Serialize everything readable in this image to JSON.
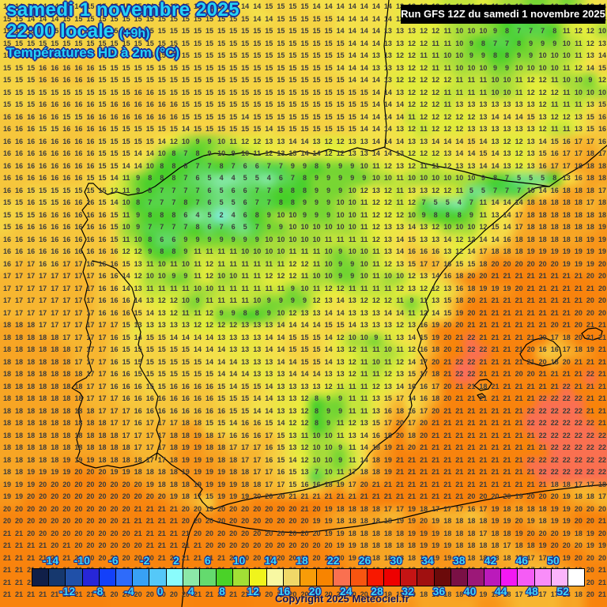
{
  "header": {
    "date_line": "samedi 1 novembre 2025",
    "time_line": "22:00 locale",
    "time_suffix": "(+9h)",
    "variable_line": "Températures HD à 2m (°C)"
  },
  "run_box": {
    "text": "Run GFS 12Z du samedi 1 novembre 2025"
  },
  "copyright": {
    "text": "Copyright 2025 Meteociel.fr"
  },
  "colors": {
    "title_text": "#22d3f7",
    "title_outline": "#1d2d96",
    "run_box_bg": "#000000",
    "run_box_text": "#ffffff",
    "number_text": "#3c3c3c",
    "coastline": "#000000",
    "copyright_text": "#13135a",
    "scale_label_text": "#3fd7f7"
  },
  "scale": {
    "min": -14,
    "max": 52,
    "step": 2,
    "labels_top": [
      "-14",
      "-10",
      "-6",
      "-2",
      "2",
      "6",
      "10",
      "14",
      "18",
      "22",
      "26",
      "30",
      "34",
      "38",
      "42",
      "46",
      "50"
    ],
    "labels_bottom": [
      "-12",
      "-8",
      "-4",
      "0",
      "4",
      "8",
      "12",
      "16",
      "20",
      "24",
      "28",
      "32",
      "36",
      "40",
      "44",
      "48",
      "52"
    ],
    "cell_colors": [
      "#101f48",
      "#16386e",
      "#2050a8",
      "#2726d8",
      "#1340fa",
      "#2e6bfa",
      "#38a1f5",
      "#55c8f8",
      "#8afcfc",
      "#8ce8a8",
      "#64da6e",
      "#4ad228",
      "#a2e035",
      "#f0f41c",
      "#f8f8a2",
      "#f0d868",
      "#f89c08",
      "#f88400",
      "#fa7050",
      "#f85510",
      "#f81800",
      "#ee0000",
      "#c41414",
      "#a01010",
      "#6b0a0a",
      "#7a1045",
      "#9c1878",
      "#bb1abb",
      "#f318f3",
      "#f55cf5",
      "#f98df9",
      "#fbb5fb",
      "#ffffff"
    ]
  },
  "map": {
    "cols": 51,
    "rows": 49,
    "gradient": [
      [
        -4,
        "#2e6bfa"
      ],
      [
        -2,
        "#38a1f5"
      ],
      [
        0,
        "#58c8f8"
      ],
      [
        2,
        "#80ecdc"
      ],
      [
        4,
        "#84e8a4"
      ],
      [
        6,
        "#62d866"
      ],
      [
        8,
        "#4cd02c"
      ],
      [
        10,
        "#a6dc3a"
      ],
      [
        12,
        "#e2ec3c"
      ],
      [
        14,
        "#f4e04a"
      ],
      [
        16,
        "#f6c63c"
      ],
      [
        18,
        "#f7a524"
      ],
      [
        20,
        "#f8860f"
      ],
      [
        21.5,
        "#f8820c"
      ],
      [
        22,
        "#fa7050"
      ],
      [
        24,
        "#f85510"
      ]
    ],
    "temps": [
      "14 14 14 14 14 14 14 15 15 15 15 15 14 14 15 15 15 15 15 14 14 14 15 15 15 15 14 14 14 14 14 14 14 13 13 13 12 11 11 11 12 11 10 10 9 9 10 9 10 13 14",
      "15 15 14 14 14 15 15 15 15 15 15 15 15 15 15 15 15 15 15 15 15 14 14 15 15 15 15 15 14 14 14 14 14 13 13 12 12 11 10 10 9 9 8 7 8 9 10 11 12 12 13",
      "15 15 15 15 15 15 15 15 15 15 15 15 15 15 15 15 15 15 15 15 15 15 15 15 15 15 15 15 14 14 14 14 13 13 13 12 12 11 10 10 10 9 8 7 7 7 8 11 12 12 10",
      "15 15 15 15 15 15 15 15 15 15 15 15 15 15 15 15 15 15 15 15 15 15 15 15 15 15 15 15 15 14 14 14 13 13 12 12 11 11 10 9 8 7 7 8 9 9 9 10 11 12 13",
      "15 15 15 15 15 15 15 16 16 15 15 15 15 15 15 15 15 15 15 15 15 15 15 15 15 15 15 15 15 14 14 13 13 12 12 11 11 10 10 9 9 8 8 9 9 10 10 10 11 13 14",
      "15 15 15 16 16 16 16 16 15 15 15 15 15 15 15 15 15 15 15 15 15 15 15 15 15 15 15 15 14 14 14 13 13 13 12 12 11 11 10 10 10 9 9 10 10 10 10 11 12 14 15",
      "15 15 15 16 16 16 16 16 15 15 15 15 15 15 15 15 15 15 15 15 15 15 15 15 15 15 15 15 15 14 14 14 13 12 12 12 12 12 11 11 11 10 10 11 12 12 11 10 10 9 12",
      "15 15 15 15 15 15 15 15 15 15 15 16 16 15 15 15 15 15 15 15 15 15 15 15 15 15 15 15 15 15 15 14 14 13 12 12 12 11 11 11 11 10 10 11 12 12 12 11 10 10 10",
      "15 15 15 16 16 16 16 16 15 16 16 16 16 16 16 15 15 15 15 15 15 15 15 15 15 15 15 15 15 15 15 14 14 14 12 12 12 11 13 13 13 13 13 13 13 12 11 11 11 13 15",
      "16 16 16 16 16 15 15 16 16 16 16 16 16 16 16 15 15 15 15 15 14 15 15 15 15 15 15 15 15 15 14 14 14 14 11 12 12 12 12 12 13 14 14 14 15 13 12 12 13 15 16",
      "16 16 16 15 15 16 16 16 16 15 15 15 15 15 15 14 15 15 15 15 15 15 14 15 15 15 15 15 15 15 14 14 14 13 12 11 12 12 12 13 13 13 13 13 13 12 11 11 13 15 16",
      "16 16 16 16 16 16 16 16 15 15 15 15 15 14 12 10 9 9 10 11 12 12 13 13 14 14 13 12 12 13 13 14 14 14 13 13 14 14 14 15 14 13 12 12 13 14 15 16 17 17 16",
      "16 16 16 16 16 16 16 16 15 15 15 14 14 10 8 7 8 9 10 9 10 11 12 13 13 14 14 12 12 13 13 14 14 13 12 12 12 13 14 14 15 14 13 12 13 15 16 17 17 18 17",
      "16 16 16 16 16 16 16 16 15 15 14 14 10 8 8 8 7 7 8 7 6 6 7 7 9 9 8 9 9 9 10 11 12 13 12 11 11 12 13 13 14 14 13 12 13 16 17 17 18 18 18",
      "16 16 16 16 16 16 16 15 15 14 11 9 8 8 8 7 6 5 4 4 5 5 4 6 7 8 9 9 9 9 9 10 10 11 10 10 10 10 10 10 9 8 7 5 5 5 8 13 16 18 18",
      "16 16 15 15 15 15 15 15 15 12 11 9 8 7 7 7 7 6 5 6 6 7 7 8 8 8 9 9 9 10 12 13 12 11 13 13 12 12 11 5 5 7 7 7 10 14 16 18 18 18 17",
      "15 15 16 15 15 16 16 16 15 14 10 8 7 7 7 8 7 6 5 5 6 7 7 8 8 9 9 9 10 10 11 12 12 11 12 7 5 5 4 7 11 14 14 14 18 18 18 18 18 17 18",
      "15 15 15 16 16 16 16 16 16 15 11 9 8 8 8 6 4 5 2 4 6 8 9 10 10 9 9 9 10 10 11 12 12 12 10 9 8 8 8 9 11 13 14 17 18 18 18 18 18 18 18",
      "15 16 16 16 16 16 16 16 16 15 10 9 7 7 7 7 8 6 7 6 5 7 9 9 10 10 10 10 10 10 11 12 13 13 14 13 12 10 10 10 12 15 14 17 18 18 18 18 18 18 19",
      "16 16 16 16 16 16 16 16 16 15 11 10 8 6 6 9 9 9 9 9 9 9 10 10 10 10 10 11 11 11 11 12 13 14 15 13 13 14 12 12 14 14 16 18 18 18 18 18 18 19 19",
      "16 16 16 16 16 16 16 16 16 16 12 12 9 8 8 9 11 11 11 11 10 10 10 10 11 11 11 10 9 10 10 11 13 14 16 16 16 13 12 14 17 18 18 18 19 19 19 19 19 19 19",
      "16 17 17 16 16 17 17 16 16 16 15 13 11 10 11 10 11 12 11 11 11 11 11 11 12 12 11 10 9 9 10 11 12 13 15 17 17 16 15 15 18 20 20 20 20 20 20 19 19 19 20",
      "17 17 17 17 17 17 17 17 16 16 14 12 10 10 9 9 11 12 10 10 11 11 12 12 12 11 10 10 9 9 10 11 10 10 12 13 14 16 18 20 20 21 21 21 21 21 21 21 21 20 20",
      "17 17 17 17 17 17 17 17 16 16 14 13 11 11 11 11 10 10 11 11 11 11 11 11 9 10 11 12 12 11 11 11 11 12 13 12 12 13 16 18 19 19 19 20 21 21 21 21 21 21 20",
      "17 17 17 17 17 17 17 17 16 16 16 14 13 12 12 10 9 11 11 11 11 10 9 9 9 9 12 13 14 13 12 12 12 11 9 11 13 15 18 20 21 21 21 21 21 21 21 21 21 20 20",
      "17 17 17 17 17 17 17 17 16 16 16 15 14 13 12 11 11 12 9 9 8 8 9 10 12 13 13 14 14 13 13 13 14 14 11 12 14 15 19 20 21 21 21 21 21 21 21 21 20 20 20",
      "18 18 18 17 17 17 17 17 17 17 15 13 13 13 13 13 12 12 12 12 13 13 13 14 14 14 14 15 15 14 13 13 13 12 13 16 19 20 20 21 21 21 21 21 21 21 20 21 20 21 21",
      "18 18 18 18 18 17 17 17 17 16 15 14 15 15 14 14 14 14 13 13 13 13 14 14 15 15 15 14 12 10 10 9 11 13 14 15 19 20 21 22 21 21 21 21 21 20 17 18 20 21 21",
      "18 18 18 18 18 18 17 17 17 16 15 15 15 15 15 15 14 14 14 13 13 13 14 14 15 15 15 14 13 12 11 11 10 11 12 16 18 20 21 22 22 21 21 21 20 16 16 17 18 19 21",
      "18 18 18 18 18 18 17 17 17 16 15 15 15 15 15 15 15 14 14 14 13 13 13 14 14 15 15 14 13 12 11 10 11 12 14 17 20 21 22 22 21 21 21 21 21 20 18 20 21 21 21",
      "18 18 18 18 18 18 18 17 17 16 16 15 15 15 15 15 15 15 14 14 14 13 13 13 14 14 14 13 13 12 11 11 12 13 15 17 18 21 22 22 21 21 21 20 20 21 21 21 21 22 21",
      "18 18 18 18 18 18 18 17 17 16 16 16 15 15 16 16 16 16 15 14 15 15 14 13 13 13 13 12 11 11 11 12 13 14 16 16 17 20 21 21 18 21 21 21 21 21 21 22 21 21 21",
      "18 18 18 18 18 18 18 17 17 17 16 16 16 16 16 16 16 16 15 15 15 14 14 13 13 12 8 9 9 11 11 13 15 17 14 16 18 20 21 21 21 21 21 21 21 22 22 22 22 21 21",
      "18 18 18 18 18 18 18 18 17 17 17 16 16 16 16 16 16 16 16 15 15 14 14 13 13 12 8 9 9 11 11 13 16 18 16 17 20 21 21 21 21 21 21 21 22 22 22 22 22 21 21",
      "18 18 18 18 18 18 18 18 18 17 17 16 17 17 17 18 18 15 15 14 16 16 15 14 12 12 8 9 11 12 13 15 17 20 17 20 21 21 21 21 21 21 21 21 22 22 22 22 22 22 21",
      "18 18 18 18 18 18 18 18 18 18 17 17 17 17 18 18 19 18 17 16 16 16 17 15 13 11 10 10 11 13 14 16 18 20 18 20 21 21 21 21 21 21 21 21 21 22 22 22 22 22 22",
      "18 18 18 18 18 18 18 18 18 18 18 17 17 17 18 19 19 18 18 17 17 17 16 15 13 12 10 10 9 11 14 18 19 21 20 21 21 21 21 21 21 21 21 21 21 21 22 22 22 22 22",
      "18 18 18 18 18 19 19 19 18 18 18 18 17 17 18 19 19 19 18 18 17 17 16 15 14 12 10 10 9 11 14 18 19 21 21 21 21 21 21 21 21 21 21 21 22 22 22 22 22 22 22",
      "18 18 19 19 19 19 20 20 20 19 19 18 18 18 18 19 19 19 19 18 18 17 17 16 15 13 7 10 11 17 18 18 19 21 21 21 21 21 21 21 21 21 21 21 21 22 22 22 22 22 22",
      "19 19 19 20 20 20 20 20 20 20 20 20 19 18 18 18 19 19 19 19 18 18 17 17 15 16 16 18 19 17 20 21 21 21 21 21 21 21 21 21 21 21 21 21 21 21 18 18 17 17 18",
      "19 19 20 20 20 20 20 20 20 20 20 20 20 20 19 18 17 15 19 19 19 20 20 20 21 21 21 21 21 21 21 21 21 21 21 21 21 21 21 20 20 20 20 19 20 20 20 19 18 18 17",
      "20 20 20 20 20 20 20 20 20 20 20 21 21 21 21 20 20 19 20 20 20 20 20 20 20 21 20 19 18 18 18 18 17 17 19 18 17 17 17 16 17 19 18 18 18 18 19 19 20 20 20",
      "20 20 20 20 20 20 20 20 20 20 21 21 21 21 21 20 20 20 20 20 20 20 20 20 20 20 19 19 18 18 18 18 18 19 19 20 19 18 18 18 18 19 19 20 19 18 19 19 20 20 21",
      "21 21 20 20 20 20 20 20 20 20 20 21 21 21 21 21 20 20 20 20 20 20 20 20 20 20 20 19 19 18 18 18 18 18 19 19 19 18 18 18 17 18 18 19 20 20 20 19 18 19 20",
      "21 21 21 21 20 21 20 20 20 20 20 20 21 21 21 21 21 20 20 20 20 20 20 20 20 20 20 20 19 19 18 18 18 18 18 19 19 19 18 18 18 18 17 18 18 19 20 20 20 19 19",
      "21 21 21 21 21 21 20 20 20 20 20 20 20 21 21 21 21 21 21 20 20 20 20 20 20 20 20 20 20 19 19 18 18 18 18 18 19 19 19 18 18 18 18 17 17 17 18 19 20 20 20",
      "21 21 21 21 21 21 21 20 20 20 20 20 20 20 21 21 21 21 21 20 20 20 20 20 20 20 20 20 20 20 19 19 18 18 18 18 18 19 19 19 18 18 18 17 17 17 17 18 19 20 21",
      "21 21 21 21 21 21 21 21 20 20 20 20 20 20 20 21 21 21 21 21 20 20 20 20 20 20 20 20 20 20 20 19 19 19 18 18 18 18 19 19 18 18 17 17 17 17 17 18 18 20 21",
      "21 21 21 21 21 21 21 21 21 20 20 20 20 20 20 20 21 21 21 21 21 20 20 20 20 20 20 20 20 20 20 20 19 19 19 18 18 18 18 18 19 19 18 17 17 17 17 18 18 20 21"
    ]
  }
}
